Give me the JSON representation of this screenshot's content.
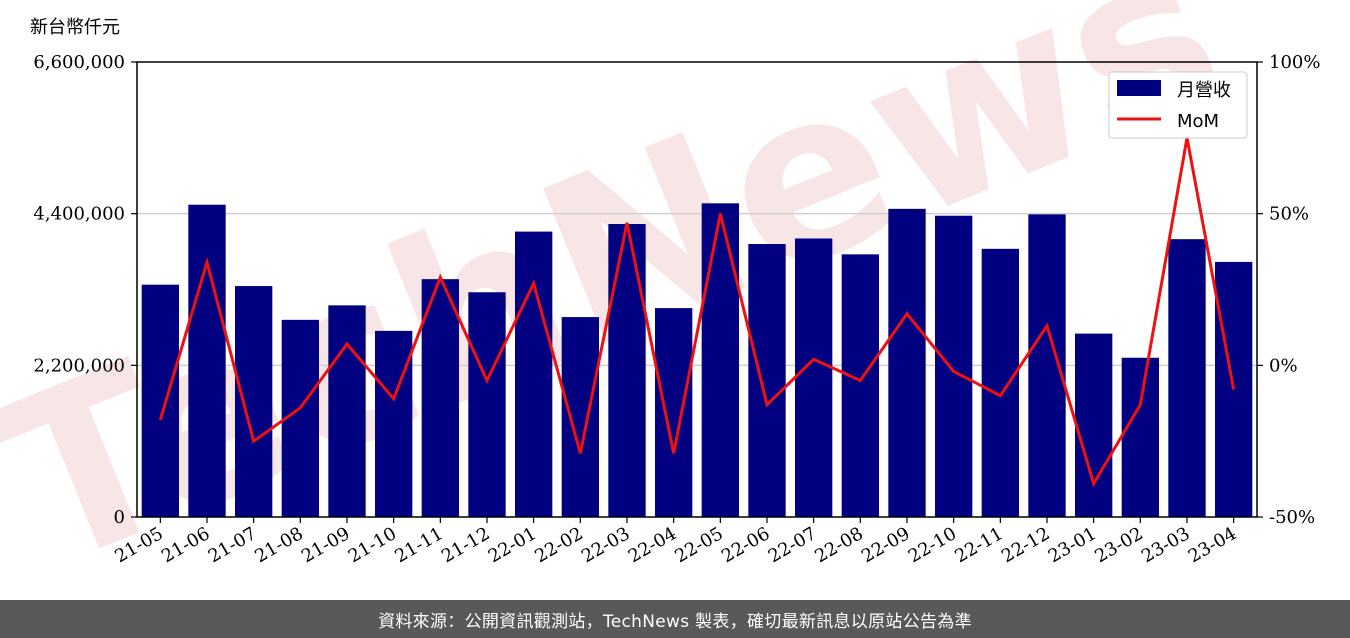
{
  "chart_data": {
    "type": "bar",
    "y_unit_label": "新台幣仟元",
    "categories": [
      "21-05",
      "21-06",
      "21-07",
      "21-08",
      "21-09",
      "21-10",
      "21-11",
      "21-12",
      "22-01",
      "22-02",
      "22-03",
      "22-04",
      "22-05",
      "22-06",
      "22-07",
      "22-08",
      "22-09",
      "22-10",
      "22-11",
      "22-12",
      "23-01",
      "23-02",
      "23-03",
      "23-04"
    ],
    "series": [
      {
        "name": "月營收",
        "type": "bar",
        "axis": "left",
        "color": "#000080",
        "values": [
          3370000,
          4530000,
          3350000,
          2860000,
          3070000,
          2700000,
          3450000,
          3260000,
          4140000,
          2900000,
          4250000,
          3030000,
          4550000,
          3960000,
          4040000,
          3810000,
          4470000,
          4370000,
          3890000,
          4390000,
          2660000,
          2310000,
          4030000,
          3700000
        ]
      },
      {
        "name": "MoM",
        "type": "line",
        "axis": "right",
        "color": "#ee1111",
        "values": [
          -18,
          34,
          -25,
          -14,
          7,
          -11,
          29,
          -5,
          27,
          -29,
          47,
          -29,
          50,
          -13,
          2,
          -5,
          17,
          -2,
          -10,
          13,
          -39,
          -13,
          75,
          -8
        ]
      }
    ],
    "y_left": {
      "min": 0,
      "max": 6600000,
      "ticks": [
        0,
        2200000,
        4400000,
        6600000
      ],
      "tick_labels": [
        "0",
        "2,200,000",
        "4,400,000",
        "6,600,000"
      ]
    },
    "y_right": {
      "min": -50,
      "max": 100,
      "ticks": [
        -50,
        0,
        50,
        100
      ],
      "tick_labels": [
        "-50%",
        "0%",
        "50%",
        "100%"
      ]
    },
    "grid": "horizontal",
    "legend": {
      "position": "top-right"
    },
    "watermark": "TechNews"
  },
  "footer": {
    "source_text": "資料來源：公開資訊觀測站，TechNews 製表，確切最新訊息以原站公告為準"
  },
  "colors": {
    "bar": "#000080",
    "line": "#ee1111",
    "footer_bg": "#595959",
    "watermark": "#f6dede"
  }
}
